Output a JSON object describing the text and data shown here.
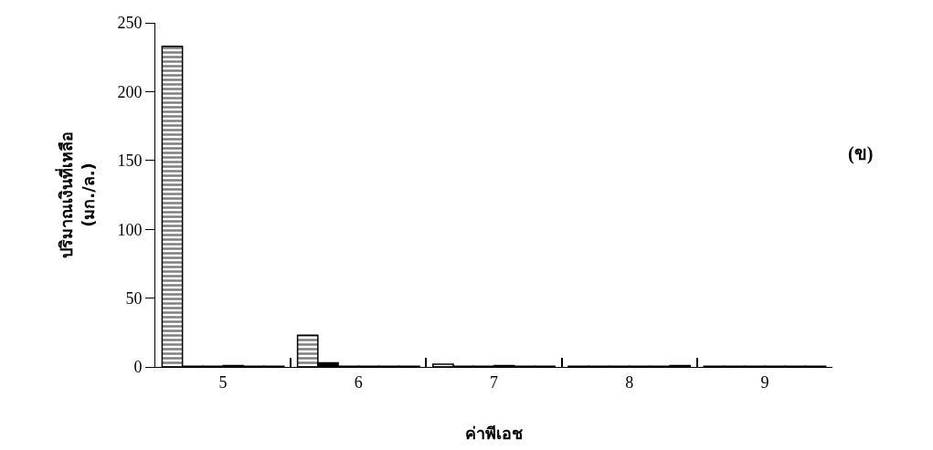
{
  "chart_data": {
    "type": "bar",
    "xlabel": "ค่าพีเอช",
    "ylabel": "ปริมาณเงินที่เหลือ\n(มก./ล.)",
    "categories": [
      "5",
      "6",
      "7",
      "8",
      "9"
    ],
    "series": [
      {
        "color": "#000000",
        "values": [
          233,
          23,
          2,
          0.5,
          0.5
        ]
      },
      {
        "color": "#000000",
        "values": [
          0.5,
          3,
          0.5,
          0.5,
          0.5
        ]
      },
      {
        "color": "#000000",
        "values": [
          0.5,
          0.5,
          0.5,
          0.5,
          0.5
        ]
      },
      {
        "color": "#000000",
        "values": [
          1,
          0.5,
          1,
          0.5,
          0.5
        ]
      },
      {
        "color": "#000000",
        "values": [
          0.5,
          0.5,
          0.5,
          0.5,
          0.5
        ]
      },
      {
        "color": "#000000",
        "values": [
          0.5,
          0.5,
          0.5,
          1,
          0.5
        ]
      }
    ],
    "ylim": [
      0,
      250
    ],
    "yticks": [
      0,
      50,
      100,
      150,
      200,
      250
    ],
    "annotations": [
      "(ข)"
    ]
  }
}
